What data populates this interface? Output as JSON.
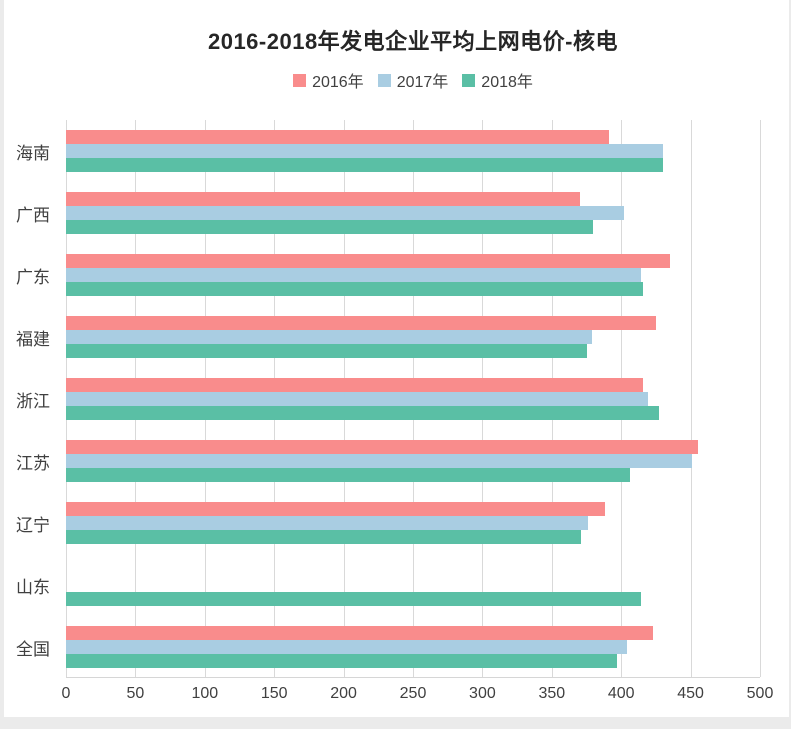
{
  "title": "2016-2018年发电企业平均上网电价-核电",
  "colors": {
    "series_2016": "#f98c8c",
    "series_2017": "#a9cde2",
    "series_2018": "#5abfa5",
    "gridline": "#d9d9d9",
    "axis_text": "#404040",
    "title_text": "#262626",
    "panel_background": "#ffffff",
    "page_edge": "#ebebeb"
  },
  "chart_data": {
    "type": "bar",
    "orientation": "horizontal",
    "title": "2016-2018年发电企业平均上网电价-核电",
    "categories": [
      "海南",
      "广西",
      "广东",
      "福建",
      "浙江",
      "江苏",
      "辽宁",
      "山东",
      "全国"
    ],
    "series": [
      {
        "name": "2016年",
        "color": "#f98c8c",
        "values": [
          391,
          370,
          435,
          425,
          416,
          455,
          388,
          null,
          423
        ]
      },
      {
        "name": "2017年",
        "color": "#a9cde2",
        "values": [
          430,
          402,
          414,
          379,
          419,
          451,
          376,
          null,
          404
        ]
      },
      {
        "name": "2018年",
        "color": "#5abfa5",
        "values": [
          430,
          380,
          416,
          375,
          427,
          406,
          371,
          414,
          397
        ]
      }
    ],
    "xlabel": "",
    "ylabel": "",
    "xlim": [
      0,
      500
    ],
    "x_ticks": [
      0,
      50,
      100,
      150,
      200,
      250,
      300,
      350,
      400,
      450,
      500
    ],
    "grid": "vertical",
    "legend_position": "top",
    "category_order": "top-to-bottom",
    "note_missing": "山东 has no 2016年 and 2017年 bars"
  }
}
